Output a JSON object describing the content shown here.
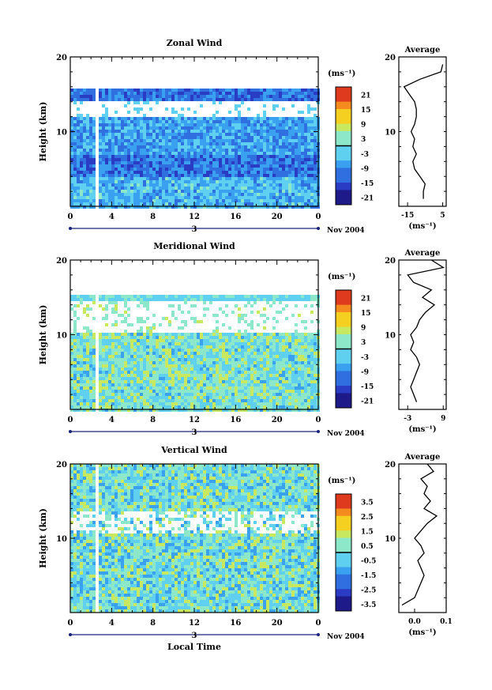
{
  "chart_data": [
    {
      "type": "heatmap",
      "title": "Zonal Wind",
      "ylabel": "Height (km)",
      "ylim": [
        0,
        20
      ],
      "yticks": [
        "20",
        "10"
      ],
      "xlim": [
        0,
        24
      ],
      "xticks": [
        "0",
        "4",
        "8",
        "12",
        "16",
        "20",
        "0"
      ],
      "date_label": "3",
      "date_right": "Nov 2004",
      "colorbar": {
        "unit": "(ms⁻¹)",
        "ticks": [
          "21",
          "15",
          "9",
          "3",
          "-3",
          "-9",
          "-15",
          "-21"
        ],
        "range": [
          -24,
          24
        ]
      },
      "average": {
        "title": "Average",
        "xlabel": "(ms⁻¹)",
        "xticks": [
          "-15",
          "5"
        ],
        "xlim": [
          -20,
          7
        ],
        "profile": [
          [
            -6,
            1
          ],
          [
            -6,
            2
          ],
          [
            -5,
            3
          ],
          [
            -8,
            4
          ],
          [
            -11,
            5
          ],
          [
            -12,
            6
          ],
          [
            -10,
            7
          ],
          [
            -12,
            8
          ],
          [
            -11,
            9
          ],
          [
            -13,
            10
          ],
          [
            -11,
            11
          ],
          [
            -10,
            12
          ],
          [
            -10,
            13
          ],
          [
            -11,
            14
          ],
          [
            -14,
            15
          ],
          [
            -17,
            16
          ],
          [
            -8,
            17
          ],
          [
            4,
            18
          ],
          [
            5,
            19
          ]
        ]
      }
    },
    {
      "type": "heatmap",
      "title": "Meridional Wind",
      "ylabel": "Height (km)",
      "ylim": [
        0,
        20
      ],
      "yticks": [
        "20",
        "10"
      ],
      "xlim": [
        0,
        24
      ],
      "xticks": [
        "0",
        "4",
        "8",
        "12",
        "16",
        "20",
        "0"
      ],
      "date_label": "3",
      "date_right": "Nov 2004",
      "colorbar": {
        "unit": "(ms⁻¹)",
        "ticks": [
          "21",
          "15",
          "9",
          "3",
          "-3",
          "-9",
          "-15",
          "-21"
        ],
        "range": [
          -24,
          24
        ]
      },
      "average": {
        "title": "Average",
        "xlabel": "(ms⁻¹)",
        "xticks": [
          "-3",
          "9"
        ],
        "xlim": [
          -6,
          10
        ],
        "profile": [
          [
            0,
            1
          ],
          [
            -1,
            2
          ],
          [
            -2,
            3
          ],
          [
            -1,
            4
          ],
          [
            0,
            5
          ],
          [
            1,
            6
          ],
          [
            0,
            7
          ],
          [
            -2,
            8
          ],
          [
            -1,
            9
          ],
          [
            -2,
            10
          ],
          [
            0,
            11
          ],
          [
            1,
            12
          ],
          [
            3,
            13
          ],
          [
            6,
            14
          ],
          [
            2,
            15
          ],
          [
            5,
            16
          ],
          [
            -1,
            17
          ],
          [
            -3,
            18
          ],
          [
            9,
            19
          ],
          [
            5,
            20
          ]
        ]
      }
    },
    {
      "type": "heatmap",
      "title": "Vertical Wind",
      "ylabel": "Height (km)",
      "xlabel": "Local Time",
      "ylim": [
        0,
        20
      ],
      "yticks": [
        "20",
        "10"
      ],
      "xlim": [
        0,
        24
      ],
      "xticks": [
        "0",
        "4",
        "8",
        "12",
        "16",
        "20",
        "0"
      ],
      "date_label": "3",
      "date_right": "Nov 2004",
      "colorbar": {
        "unit": "(ms⁻¹)",
        "ticks": [
          "3.5",
          "2.5",
          "1.5",
          "0.5",
          "-0.5",
          "-1.5",
          "-2.5",
          "-3.5"
        ],
        "range": [
          -4,
          4
        ]
      },
      "average": {
        "title": "Average",
        "xlabel": "(ms⁻¹)",
        "xticks": [
          "0.0",
          "0.1"
        ],
        "xlim": [
          -0.05,
          0.1
        ],
        "profile": [
          [
            -0.04,
            1
          ],
          [
            0.0,
            2
          ],
          [
            0.01,
            3
          ],
          [
            0.02,
            4
          ],
          [
            0.03,
            5
          ],
          [
            0.02,
            6
          ],
          [
            0.01,
            7
          ],
          [
            0.03,
            8
          ],
          [
            0.02,
            9
          ],
          [
            0.0,
            10
          ],
          [
            0.02,
            11
          ],
          [
            0.04,
            12
          ],
          [
            0.07,
            13
          ],
          [
            0.03,
            14
          ],
          [
            0.05,
            15
          ],
          [
            0.03,
            16
          ],
          [
            0.04,
            17
          ],
          [
            0.02,
            18
          ],
          [
            0.06,
            19
          ],
          [
            0.04,
            20
          ]
        ]
      }
    }
  ]
}
